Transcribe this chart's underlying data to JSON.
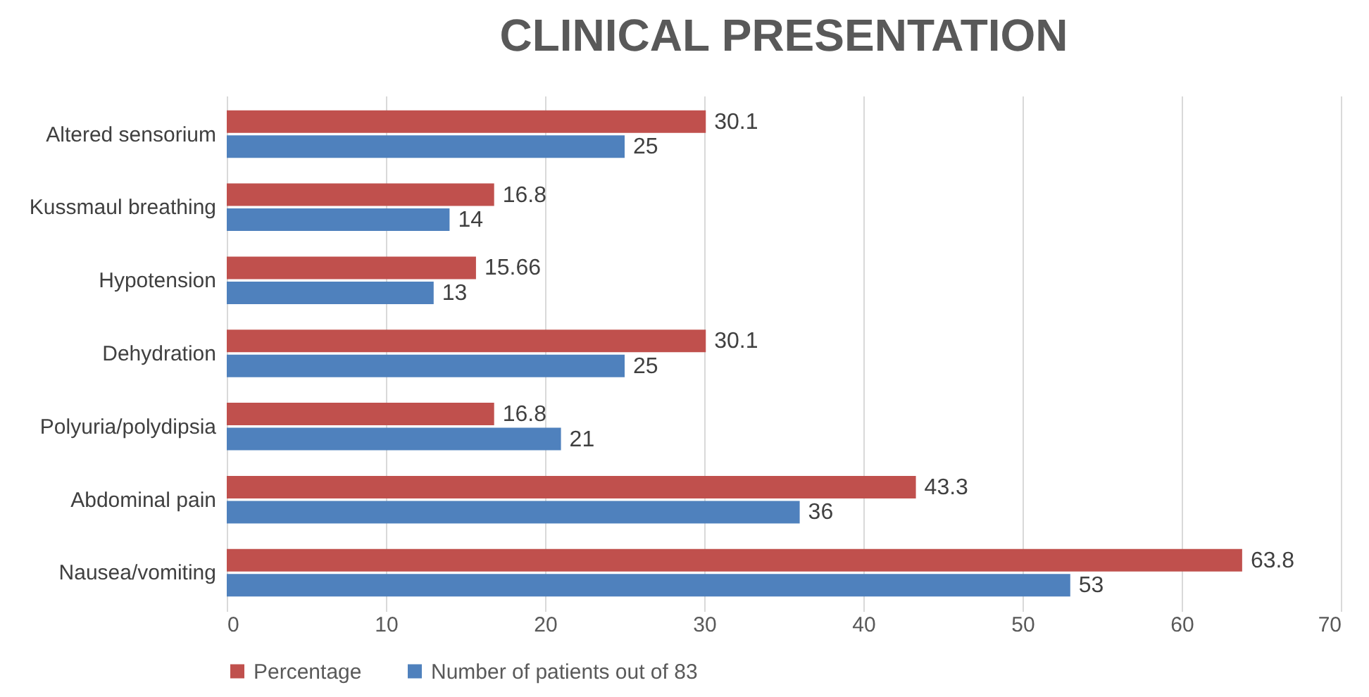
{
  "chart_data": {
    "type": "bar",
    "orientation": "horizontal",
    "title": "CLINICAL PRESENTATION",
    "categories": [
      "Altered sensorium",
      "Kussmaul breathing",
      "Hypotension",
      "Dehydration",
      "Polyuria/polydipsia",
      "Abdominal pain",
      "Nausea/vomiting"
    ],
    "series": [
      {
        "name": "Percentage",
        "color": "#c0504d",
        "values": [
          30.1,
          16.8,
          15.66,
          30.1,
          16.8,
          43.3,
          63.8
        ]
      },
      {
        "name": "Number of patients out of 83",
        "color": "#4f81bd",
        "values": [
          25,
          14,
          13,
          25,
          21,
          36,
          53
        ]
      }
    ],
    "xlim": [
      0,
      70
    ],
    "xticks": [
      0,
      10,
      20,
      30,
      40,
      50,
      60,
      70
    ],
    "grid": "x",
    "legend": "bottom",
    "data_labels": true
  }
}
